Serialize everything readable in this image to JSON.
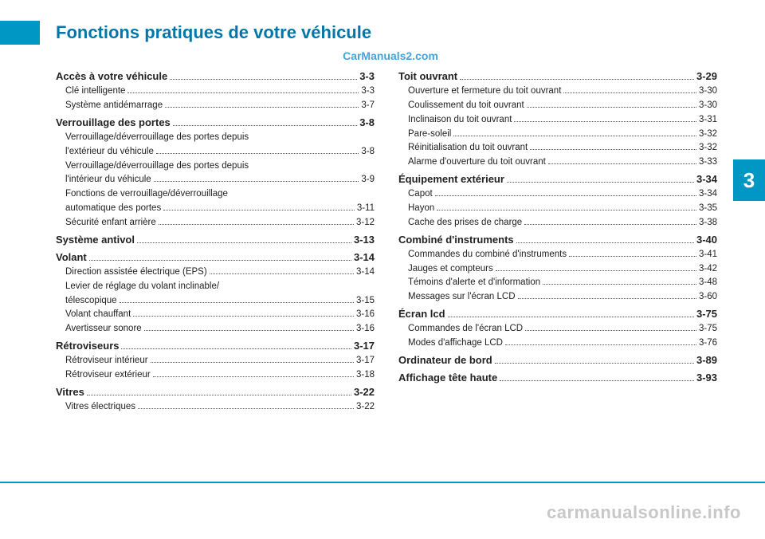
{
  "title": "Fonctions pratiques de votre véhicule",
  "watermark_top": "CarManuals2.com",
  "tab_number": "3",
  "footer_watermark": "carmanualsonline.info",
  "colors": {
    "accent": "#0097c4",
    "title": "#0077a8",
    "watermark_top": "#3da6e0",
    "footer_wm": "#c8c8c8",
    "text": "#222222"
  },
  "left": [
    {
      "type": "section",
      "label": "Accès à votre véhicule",
      "page": "3-3"
    },
    {
      "type": "sub",
      "label": "Clé intelligente",
      "page": "3-3"
    },
    {
      "type": "sub",
      "label": "Système antidémarrage",
      "page": "3-7"
    },
    {
      "type": "section",
      "label": "Verrouillage des portes",
      "page": "3-8"
    },
    {
      "type": "sub",
      "label": "Verrouillage/déverrouillage des portes depuis",
      "page": ""
    },
    {
      "type": "sub",
      "label": "l'extérieur du véhicule",
      "page": "3-8"
    },
    {
      "type": "sub",
      "label": "Verrouillage/déverrouillage des portes depuis",
      "page": ""
    },
    {
      "type": "sub",
      "label": "l'intérieur du véhicule",
      "page": "3-9"
    },
    {
      "type": "sub",
      "label": "Fonctions de verrouillage/déverrouillage",
      "page": ""
    },
    {
      "type": "sub",
      "label": "automatique des portes",
      "page": "3-11"
    },
    {
      "type": "sub",
      "label": "Sécurité enfant arrière",
      "page": "3-12"
    },
    {
      "type": "section",
      "label": "Système antivol",
      "page": "3-13"
    },
    {
      "type": "section",
      "label": "Volant",
      "page": "3-14"
    },
    {
      "type": "sub",
      "label": "Direction assistée électrique (EPS)",
      "page": "3-14"
    },
    {
      "type": "sub",
      "label": "Levier de réglage du volant inclinable/",
      "page": ""
    },
    {
      "type": "sub",
      "label": "télescopique",
      "page": "3-15"
    },
    {
      "type": "sub",
      "label": "Volant chauffant",
      "page": "3-16"
    },
    {
      "type": "sub",
      "label": "Avertisseur sonore",
      "page": "3-16"
    },
    {
      "type": "section",
      "label": "Rétroviseurs",
      "page": "3-17"
    },
    {
      "type": "sub",
      "label": "Rétroviseur intérieur",
      "page": "3-17"
    },
    {
      "type": "sub",
      "label": "Rétroviseur extérieur",
      "page": "3-18"
    },
    {
      "type": "section",
      "label": "Vitres",
      "page": "3-22"
    },
    {
      "type": "sub",
      "label": "Vitres électriques",
      "page": "3-22"
    }
  ],
  "right": [
    {
      "type": "section",
      "label": "Toit ouvrant",
      "page": "3-29"
    },
    {
      "type": "sub",
      "label": "Ouverture et fermeture du toit ouvrant",
      "page": "3-30"
    },
    {
      "type": "sub",
      "label": "Coulissement du toit ouvrant",
      "page": "3-30"
    },
    {
      "type": "sub",
      "label": "Inclinaison du toit ouvrant",
      "page": "3-31"
    },
    {
      "type": "sub",
      "label": "Pare-soleil",
      "page": "3-32"
    },
    {
      "type": "sub",
      "label": "Réinitialisation du toit ouvrant",
      "page": "3-32"
    },
    {
      "type": "sub",
      "label": "Alarme d'ouverture du toit ouvrant",
      "page": "3-33"
    },
    {
      "type": "section",
      "label": "Équipement extérieur",
      "page": "3-34"
    },
    {
      "type": "sub",
      "label": "Capot",
      "page": "3-34"
    },
    {
      "type": "sub",
      "label": "Hayon",
      "page": "3-35"
    },
    {
      "type": "sub",
      "label": "Cache des prises de charge",
      "page": "3-38"
    },
    {
      "type": "section",
      "label": "Combiné d'instruments",
      "page": "3-40"
    },
    {
      "type": "sub",
      "label": "Commandes du combiné d'instruments",
      "page": "3-41"
    },
    {
      "type": "sub",
      "label": "Jauges et compteurs",
      "page": "3-42"
    },
    {
      "type": "sub",
      "label": "Témoins d'alerte et d'information",
      "page": "3-48"
    },
    {
      "type": "sub",
      "label": "Messages sur l'écran LCD",
      "page": "3-60"
    },
    {
      "type": "section",
      "label": "Écran lcd",
      "page": "3-75"
    },
    {
      "type": "sub",
      "label": "Commandes de l'écran LCD",
      "page": "3-75"
    },
    {
      "type": "sub",
      "label": "Modes d'affichage LCD",
      "page": "3-76"
    },
    {
      "type": "section",
      "label": "Ordinateur de bord",
      "page": "3-89"
    },
    {
      "type": "section",
      "label": "Affichage tête haute",
      "page": "3-93"
    }
  ]
}
